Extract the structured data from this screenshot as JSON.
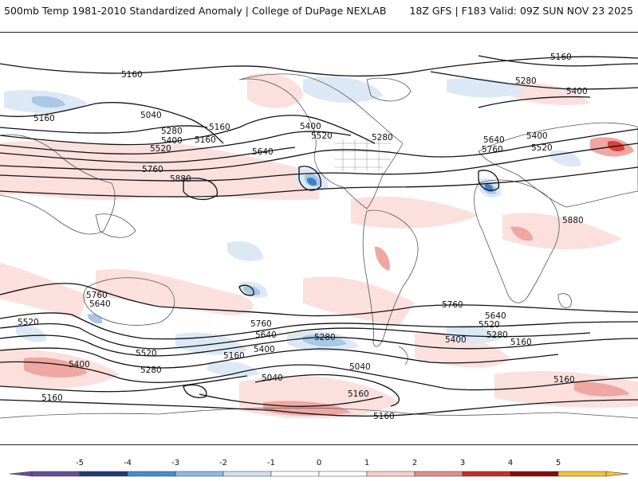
{
  "header": {
    "title": "500mb Temp 1981-2010 Standardized Anomaly | College of DuPage NEXLAB",
    "run_info": "18Z GFS | F183 Valid: 09Z SUN NOV 23 2025"
  },
  "colors": {
    "anomaly_positive_light": "#fbe0de",
    "anomaly_positive_med": "#f4b3ae",
    "anomaly_positive_strong": "#e0534f",
    "anomaly_negative_light": "#dce8f5",
    "anomaly_negative_med": "#a8c8e6",
    "anomaly_negative_strong": "#4f93cf",
    "contour": "#111111",
    "coastline": "#555555"
  },
  "contour_labels": [
    "5160",
    "5160",
    "5280",
    "5400",
    "5160",
    "5040",
    "5280",
    "5400",
    "5160",
    "5520",
    "5640",
    "5760",
    "5880",
    "5400",
    "5520",
    "5280",
    "5640",
    "5760",
    "5400",
    "5520",
    "5880",
    "5160",
    "5760",
    "5640",
    "5520",
    "5400",
    "5280",
    "5160",
    "5760",
    "5640",
    "5520",
    "5400",
    "5280",
    "5160",
    "5040",
    "5040",
    "5160",
    "5160",
    "5760",
    "5640",
    "5520",
    "5400",
    "5280",
    "5160",
    "5160"
  ],
  "colorbar": {
    "ticks": [
      "-5",
      "-4",
      "-3",
      "-2",
      "-1",
      "0",
      "1",
      "2",
      "3",
      "4",
      "5"
    ],
    "colors": [
      "#6a4c9c",
      "#1f3a78",
      "#3f8fd0",
      "#8dbbe3",
      "#cfe0f1",
      "#ffffff",
      "#ffffff",
      "#f6cfcb",
      "#e38e89",
      "#c92a2a",
      "#8b0a0a",
      "#f4c430"
    ]
  }
}
